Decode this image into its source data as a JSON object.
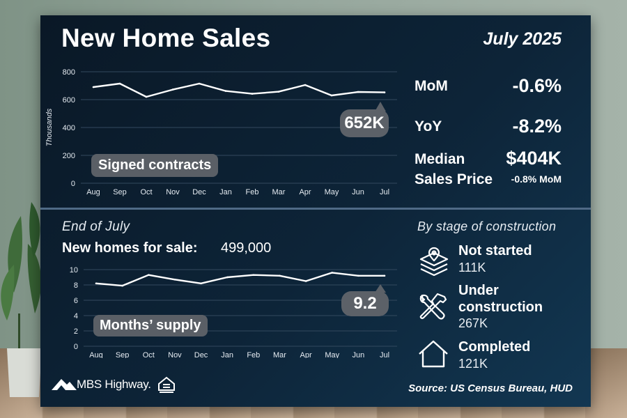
{
  "header": {
    "title": "New Home Sales",
    "date": "July 2025"
  },
  "sales_stats": {
    "mom_label": "MoM",
    "mom_value": "-0.6%",
    "yoy_label": "YoY",
    "yoy_value": "-8.2%",
    "median_label_line1": "Median",
    "median_label_line2": "Sales Price",
    "median_value": "$404K",
    "median_change": "-0.8% MoM"
  },
  "inventory": {
    "period_label": "End of July",
    "homes_for_sale_label": "New homes for sale:",
    "homes_for_sale_value": "499,000"
  },
  "stages": {
    "title": "By stage of construction",
    "items": [
      {
        "name_line1": "Not started",
        "name_line2": "",
        "value": "111K",
        "icon": "parcel-location-icon"
      },
      {
        "name_line1": "Under",
        "name_line2": "construction",
        "value": "267K",
        "icon": "tools-icon"
      },
      {
        "name_line1": "Completed",
        "name_line2": "",
        "value": "121K",
        "icon": "house-icon"
      }
    ]
  },
  "footer": {
    "brand": "MBS Highway.",
    "housing_logo_icon": "equal-housing-icon",
    "source": "Source: US Census Bureau, HUD"
  },
  "chart_data": [
    {
      "type": "line",
      "categories": [
        "Aug",
        "Sep",
        "Oct",
        "Nov",
        "Dec",
        "Jan",
        "Feb",
        "Mar",
        "Apr",
        "May",
        "Jun",
        "Jul"
      ],
      "values": [
        690,
        715,
        620,
        672,
        715,
        662,
        642,
        657,
        705,
        630,
        655,
        652
      ],
      "ylabel": "Thousands",
      "ylim": [
        0,
        800
      ],
      "yticks": [
        0,
        200,
        400,
        600,
        800
      ],
      "grid": true,
      "series_label": "Signed contracts",
      "callout": "652K",
      "line_color": "#ffffff"
    },
    {
      "type": "line",
      "categories": [
        "Aug",
        "Sep",
        "Oct",
        "Nov",
        "Dec",
        "Jan",
        "Feb",
        "Mar",
        "Apr",
        "May",
        "Jun",
        "Jul"
      ],
      "values": [
        8.2,
        7.9,
        9.3,
        8.7,
        8.2,
        9.0,
        9.3,
        9.2,
        8.5,
        9.6,
        9.2,
        9.2
      ],
      "ylim": [
        0,
        10
      ],
      "yticks": [
        0,
        2,
        4,
        6,
        8,
        10
      ],
      "grid": true,
      "series_label": "Months’ supply",
      "callout": "9.2",
      "line_color": "#ffffff"
    }
  ]
}
